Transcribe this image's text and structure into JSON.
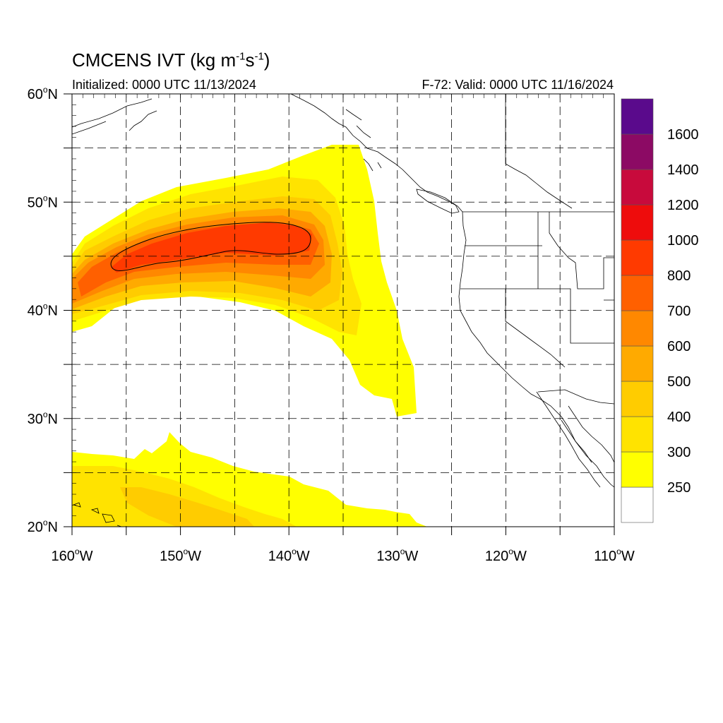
{
  "title": {
    "main": "CMCENS IVT (kg m",
    "exp1": "-1",
    "mid": "s",
    "exp2": "-1",
    "close": ")",
    "initialized": "Initialized: 0000 UTC 11/13/2024",
    "valid": "F-72: Valid: 0000 UTC 11/16/2024"
  },
  "map": {
    "lon_range": [
      -160,
      -110
    ],
    "lat_range": [
      20,
      60
    ],
    "lon_ticks": [
      "160",
      "150",
      "140",
      "130",
      "120",
      "110"
    ],
    "lon_suffix": "W",
    "lat_ticks": [
      "20",
      "30",
      "40",
      "50",
      "60"
    ],
    "lat_suffix": "N",
    "degree": "o",
    "grid": true
  },
  "colorbar": {
    "labels": [
      "250",
      "300",
      "400",
      "500",
      "600",
      "700",
      "800",
      "1000",
      "1200",
      "1400",
      "1600"
    ],
    "colors": [
      "#ffffff",
      "#ffff00",
      "#ffe300",
      "#ffcc00",
      "#ffaa00",
      "#ff8800",
      "#ff6000",
      "#ff3a00",
      "#ee0c0c",
      "#c80a3c",
      "#8c0a64",
      "#5a0a8c"
    ]
  }
}
